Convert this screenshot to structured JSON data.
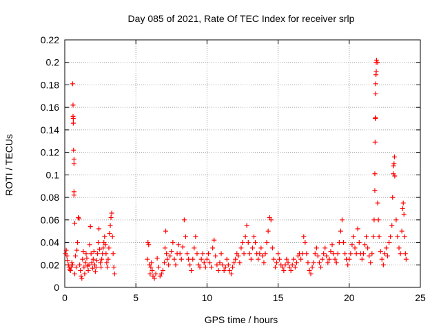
{
  "chart_data": {
    "type": "scatter",
    "title": "Day 085 of 2021, Rate Of TEC Index for receiver srlp",
    "xlabel": "GPS time / hours",
    "ylabel": "ROTI / TECUs",
    "xlim": [
      0,
      25
    ],
    "ylim": [
      0,
      0.22
    ],
    "xticks": [
      0,
      5,
      10,
      15,
      20,
      25
    ],
    "xtick_labels": [
      "0",
      "5",
      "10",
      "15",
      "20",
      "25"
    ],
    "yticks": [
      0,
      0.02,
      0.04,
      0.06,
      0.08,
      0.1,
      0.12,
      0.14,
      0.16,
      0.18,
      0.2,
      0.22
    ],
    "ytick_labels": [
      "0",
      "0.02",
      "0.04",
      "0.06",
      "0.08",
      "0.1",
      "0.12",
      "0.14",
      "0.16",
      "0.18",
      "0.2",
      "0.22"
    ],
    "grid": true,
    "marker": "+",
    "color": "#ff0000",
    "series": [
      {
        "name": "ROTI",
        "points": [
          [
            0.05,
            0.03
          ],
          [
            0.1,
            0.033
          ],
          [
            0.15,
            0.028
          ],
          [
            0.2,
            0.024
          ],
          [
            0.25,
            0.02
          ],
          [
            0.3,
            0.018
          ],
          [
            0.35,
            0.016
          ],
          [
            0.4,
            0.015
          ],
          [
            0.45,
            0.018
          ],
          [
            0.5,
            0.022
          ],
          [
            0.55,
            0.02
          ],
          [
            0.55,
            0.181
          ],
          [
            0.58,
            0.162
          ],
          [
            0.58,
            0.152
          ],
          [
            0.6,
            0.15
          ],
          [
            0.6,
            0.146
          ],
          [
            0.62,
            0.122
          ],
          [
            0.65,
            0.114
          ],
          [
            0.65,
            0.11
          ],
          [
            0.65,
            0.085
          ],
          [
            0.65,
            0.082
          ],
          [
            0.7,
            0.057
          ],
          [
            0.7,
            0.012
          ],
          [
            0.75,
            0.028
          ],
          [
            0.8,
            0.018
          ],
          [
            0.85,
            0.033
          ],
          [
            0.9,
            0.04
          ],
          [
            0.95,
            0.062
          ],
          [
            1.0,
            0.061
          ],
          [
            1.05,
            0.02
          ],
          [
            1.1,
            0.015
          ],
          [
            1.15,
            0.01
          ],
          [
            1.2,
            0.008
          ],
          [
            1.25,
            0.025
          ],
          [
            1.3,
            0.032
          ],
          [
            1.35,
            0.018
          ],
          [
            1.4,
            0.012
          ],
          [
            1.45,
            0.022
          ],
          [
            1.5,
            0.03
          ],
          [
            1.55,
            0.026
          ],
          [
            1.6,
            0.019
          ],
          [
            1.65,
            0.015
          ],
          [
            1.7,
            0.02
          ],
          [
            1.75,
            0.038
          ],
          [
            1.8,
            0.054
          ],
          [
            1.85,
            0.03
          ],
          [
            1.9,
            0.022
          ],
          [
            1.95,
            0.017
          ],
          [
            2.0,
            0.025
          ],
          [
            2.05,
            0.032
          ],
          [
            2.1,
            0.02
          ],
          [
            2.15,
            0.014
          ],
          [
            2.2,
            0.018
          ],
          [
            2.25,
            0.024
          ],
          [
            2.3,
            0.03
          ],
          [
            2.35,
            0.04
          ],
          [
            2.4,
            0.052
          ],
          [
            2.45,
            0.034
          ],
          [
            2.5,
            0.022
          ],
          [
            2.55,
            0.018
          ],
          [
            2.6,
            0.025
          ],
          [
            2.65,
            0.03
          ],
          [
            2.7,
            0.035
          ],
          [
            2.75,
            0.04
          ],
          [
            2.8,
            0.045
          ],
          [
            2.85,
            0.038
          ],
          [
            2.9,
            0.03
          ],
          [
            2.95,
            0.022
          ],
          [
            3.0,
            0.018
          ],
          [
            3.05,
            0.025
          ],
          [
            3.1,
            0.035
          ],
          [
            3.15,
            0.048
          ],
          [
            3.2,
            0.055
          ],
          [
            3.25,
            0.062
          ],
          [
            3.3,
            0.066
          ],
          [
            3.35,
            0.045
          ],
          [
            3.4,
            0.03
          ],
          [
            3.45,
            0.018
          ],
          [
            3.5,
            0.012
          ],
          [
            5.8,
            0.025
          ],
          [
            5.85,
            0.04
          ],
          [
            5.9,
            0.038
          ],
          [
            5.95,
            0.02
          ],
          [
            6.0,
            0.012
          ],
          [
            6.05,
            0.018
          ],
          [
            6.1,
            0.022
          ],
          [
            6.15,
            0.015
          ],
          [
            6.2,
            0.01
          ],
          [
            6.3,
            0.008
          ],
          [
            6.4,
            0.012
          ],
          [
            6.5,
            0.026
          ],
          [
            6.6,
            0.018
          ],
          [
            6.7,
            0.01
          ],
          [
            6.8,
            0.012
          ],
          [
            6.9,
            0.015
          ],
          [
            7.0,
            0.022
          ],
          [
            7.05,
            0.035
          ],
          [
            7.1,
            0.05
          ],
          [
            7.15,
            0.03
          ],
          [
            7.2,
            0.025
          ],
          [
            7.3,
            0.02
          ],
          [
            7.4,
            0.028
          ],
          [
            7.5,
            0.032
          ],
          [
            7.6,
            0.04
          ],
          [
            7.7,
            0.025
          ],
          [
            7.8,
            0.02
          ],
          [
            7.9,
            0.03
          ],
          [
            8.0,
            0.038
          ],
          [
            8.1,
            0.03
          ],
          [
            8.2,
            0.025
          ],
          [
            8.3,
            0.036
          ],
          [
            8.4,
            0.06
          ],
          [
            8.5,
            0.045
          ],
          [
            8.6,
            0.03
          ],
          [
            8.7,
            0.025
          ],
          [
            8.8,
            0.02
          ],
          [
            8.9,
            0.015
          ],
          [
            9.0,
            0.025
          ],
          [
            9.1,
            0.035
          ],
          [
            9.2,
            0.045
          ],
          [
            9.3,
            0.03
          ],
          [
            9.4,
            0.02
          ],
          [
            9.5,
            0.018
          ],
          [
            9.6,
            0.025
          ],
          [
            9.7,
            0.03
          ],
          [
            9.8,
            0.022
          ],
          [
            9.9,
            0.018
          ],
          [
            10.0,
            0.025
          ],
          [
            10.1,
            0.03
          ],
          [
            10.2,
            0.022
          ],
          [
            10.3,
            0.018
          ],
          [
            10.4,
            0.035
          ],
          [
            10.5,
            0.042
          ],
          [
            10.6,
            0.028
          ],
          [
            10.7,
            0.02
          ],
          [
            10.8,
            0.015
          ],
          [
            10.9,
            0.022
          ],
          [
            11.0,
            0.03
          ],
          [
            11.1,
            0.02
          ],
          [
            11.2,
            0.015
          ],
          [
            11.3,
            0.018
          ],
          [
            11.4,
            0.025
          ],
          [
            11.5,
            0.02
          ],
          [
            11.6,
            0.015
          ],
          [
            11.7,
            0.012
          ],
          [
            11.8,
            0.018
          ],
          [
            11.9,
            0.022
          ],
          [
            12.0,
            0.025
          ],
          [
            12.1,
            0.03
          ],
          [
            12.2,
            0.028
          ],
          [
            12.3,
            0.022
          ],
          [
            12.4,
            0.035
          ],
          [
            12.5,
            0.04
          ],
          [
            12.6,
            0.03
          ],
          [
            12.7,
            0.045
          ],
          [
            12.8,
            0.055
          ],
          [
            12.9,
            0.04
          ],
          [
            13.0,
            0.03
          ],
          [
            13.1,
            0.025
          ],
          [
            13.2,
            0.035
          ],
          [
            13.3,
            0.045
          ],
          [
            13.4,
            0.04
          ],
          [
            13.5,
            0.03
          ],
          [
            13.6,
            0.025
          ],
          [
            13.7,
            0.03
          ],
          [
            13.8,
            0.035
          ],
          [
            13.9,
            0.028
          ],
          [
            14.0,
            0.022
          ],
          [
            14.1,
            0.03
          ],
          [
            14.2,
            0.04
          ],
          [
            14.3,
            0.05
          ],
          [
            14.4,
            0.062
          ],
          [
            14.5,
            0.06
          ],
          [
            14.6,
            0.035
          ],
          [
            14.7,
            0.025
          ],
          [
            14.8,
            0.018
          ],
          [
            14.9,
            0.022
          ],
          [
            15.0,
            0.03
          ],
          [
            15.1,
            0.025
          ],
          [
            15.2,
            0.02
          ],
          [
            15.3,
            0.018
          ],
          [
            15.4,
            0.015
          ],
          [
            15.5,
            0.02
          ],
          [
            15.6,
            0.025
          ],
          [
            15.7,
            0.022
          ],
          [
            15.8,
            0.018
          ],
          [
            15.9,
            0.015
          ],
          [
            16.0,
            0.02
          ],
          [
            16.1,
            0.025
          ],
          [
            16.2,
            0.018
          ],
          [
            16.3,
            0.022
          ],
          [
            16.4,
            0.028
          ],
          [
            16.5,
            0.03
          ],
          [
            16.6,
            0.025
          ],
          [
            16.7,
            0.03
          ],
          [
            16.8,
            0.045
          ],
          [
            16.9,
            0.04
          ],
          [
            17.0,
            0.03
          ],
          [
            17.1,
            0.022
          ],
          [
            17.2,
            0.015
          ],
          [
            17.3,
            0.012
          ],
          [
            17.4,
            0.018
          ],
          [
            17.5,
            0.022
          ],
          [
            17.6,
            0.03
          ],
          [
            17.7,
            0.035
          ],
          [
            17.8,
            0.028
          ],
          [
            17.9,
            0.022
          ],
          [
            18.0,
            0.018
          ],
          [
            18.1,
            0.025
          ],
          [
            18.2,
            0.03
          ],
          [
            18.3,
            0.035
          ],
          [
            18.4,
            0.028
          ],
          [
            18.5,
            0.022
          ],
          [
            18.6,
            0.025
          ],
          [
            18.7,
            0.032
          ],
          [
            18.8,
            0.038
          ],
          [
            18.9,
            0.03
          ],
          [
            19.0,
            0.025
          ],
          [
            19.1,
            0.022
          ],
          [
            19.2,
            0.03
          ],
          [
            19.3,
            0.04
          ],
          [
            19.4,
            0.05
          ],
          [
            19.5,
            0.06
          ],
          [
            19.6,
            0.04
          ],
          [
            19.7,
            0.03
          ],
          [
            19.8,
            0.025
          ],
          [
            19.9,
            0.02
          ],
          [
            20.0,
            0.025
          ],
          [
            20.1,
            0.03
          ],
          [
            20.2,
            0.038
          ],
          [
            20.3,
            0.045
          ],
          [
            20.4,
            0.035
          ],
          [
            20.5,
            0.03
          ],
          [
            20.6,
            0.052
          ],
          [
            20.7,
            0.04
          ],
          [
            20.8,
            0.03
          ],
          [
            20.9,
            0.025
          ],
          [
            21.0,
            0.03
          ],
          [
            21.1,
            0.038
          ],
          [
            21.2,
            0.045
          ],
          [
            21.3,
            0.035
          ],
          [
            21.4,
            0.028
          ],
          [
            21.5,
            0.022
          ],
          [
            21.6,
            0.03
          ],
          [
            21.7,
            0.045
          ],
          [
            21.75,
            0.06
          ],
          [
            21.8,
            0.086
          ],
          [
            21.8,
            0.101
          ],
          [
            21.82,
            0.129
          ],
          [
            21.83,
            0.15
          ],
          [
            21.85,
            0.151
          ],
          [
            21.86,
            0.172
          ],
          [
            21.87,
            0.181
          ],
          [
            21.88,
            0.189
          ],
          [
            21.9,
            0.192
          ],
          [
            21.9,
            0.2
          ],
          [
            21.92,
            0.202
          ],
          [
            22.0,
            0.2
          ],
          [
            22.0,
            0.075
          ],
          [
            22.05,
            0.06
          ],
          [
            22.1,
            0.045
          ],
          [
            22.2,
            0.032
          ],
          [
            22.3,
            0.025
          ],
          [
            22.4,
            0.02
          ],
          [
            22.5,
            0.03
          ],
          [
            22.6,
            0.035
          ],
          [
            22.7,
            0.028
          ],
          [
            22.8,
            0.04
          ],
          [
            22.9,
            0.045
          ],
          [
            23.0,
            0.055
          ],
          [
            23.05,
            0.08
          ],
          [
            23.1,
            0.101
          ],
          [
            23.12,
            0.108
          ],
          [
            23.15,
            0.11
          ],
          [
            23.18,
            0.116
          ],
          [
            23.2,
            0.099
          ],
          [
            23.3,
            0.06
          ],
          [
            23.4,
            0.045
          ],
          [
            23.5,
            0.035
          ],
          [
            23.6,
            0.03
          ],
          [
            23.7,
            0.05
          ],
          [
            23.75,
            0.07
          ],
          [
            23.8,
            0.075
          ],
          [
            23.85,
            0.065
          ],
          [
            23.9,
            0.045
          ],
          [
            23.95,
            0.03
          ],
          [
            24.0,
            0.025
          ]
        ]
      }
    ]
  }
}
